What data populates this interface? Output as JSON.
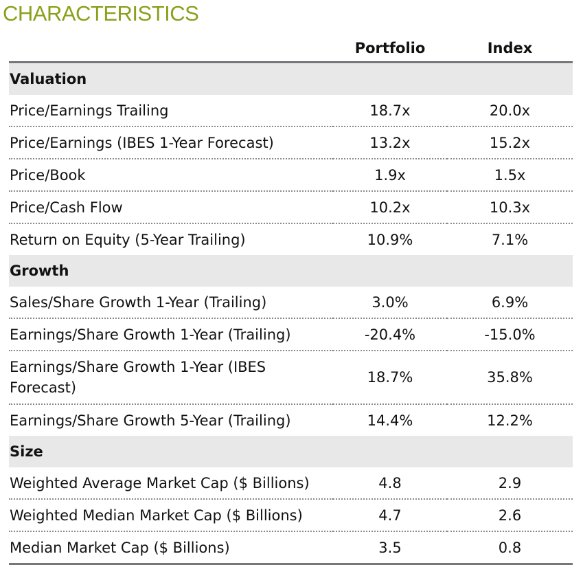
{
  "title": "CHARACTERISTICS",
  "columns": [
    "Portfolio",
    "Index"
  ],
  "colors": {
    "title": "#8a9f1a",
    "section_bg": "#e8e8e8",
    "rule": "#76777b"
  },
  "sections": [
    {
      "name": "Valuation",
      "rows": [
        {
          "label": "Price/Earnings Trailing",
          "portfolio": "18.7x",
          "index": "20.0x"
        },
        {
          "label": "Price/Earnings (IBES 1-Year Forecast)",
          "portfolio": "13.2x",
          "index": "15.2x"
        },
        {
          "label": "Price/Book",
          "portfolio": "1.9x",
          "index": "1.5x"
        },
        {
          "label": "Price/Cash Flow",
          "portfolio": "10.2x",
          "index": "10.3x"
        },
        {
          "label": "Return on Equity (5-Year Trailing)",
          "portfolio": "10.9%",
          "index": "7.1%"
        }
      ]
    },
    {
      "name": "Growth",
      "rows": [
        {
          "label": "Sales/Share Growth 1-Year (Trailing)",
          "portfolio": "3.0%",
          "index": "6.9%"
        },
        {
          "label": "Earnings/Share Growth 1-Year (Trailing)",
          "portfolio": "-20.4%",
          "index": "-15.0%"
        },
        {
          "label": "Earnings/Share Growth 1-Year (IBES Forecast)",
          "portfolio": "18.7%",
          "index": "35.8%"
        },
        {
          "label": "Earnings/Share Growth 5-Year (Trailing)",
          "portfolio": "14.4%",
          "index": "12.2%"
        }
      ]
    },
    {
      "name": "Size",
      "rows": [
        {
          "label": "Weighted Average Market Cap ($ Billions)",
          "portfolio": "4.8",
          "index": "2.9"
        },
        {
          "label": "Weighted Median Market Cap ($ Billions)",
          "portfolio": "4.7",
          "index": "2.6"
        },
        {
          "label": "Median Market Cap ($ Billions)",
          "portfolio": "3.5",
          "index": "0.8"
        }
      ]
    }
  ]
}
